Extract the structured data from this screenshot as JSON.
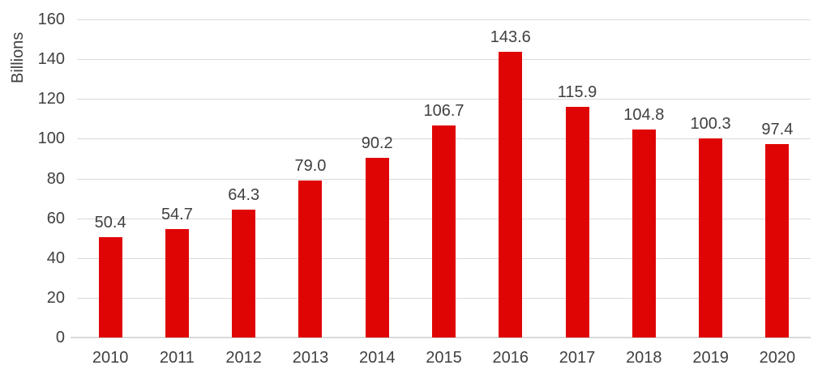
{
  "chart_data": {
    "type": "bar",
    "title": "",
    "xlabel": "",
    "ylabel": "Billions",
    "categories": [
      "2010",
      "2011",
      "2012",
      "2013",
      "2014",
      "2015",
      "2016",
      "2017",
      "2018",
      "2019",
      "2020"
    ],
    "values": [
      50.4,
      54.7,
      64.3,
      79.0,
      90.2,
      106.7,
      143.6,
      115.9,
      104.8,
      100.3,
      97.4
    ],
    "data_labels": [
      "50.4",
      "54.7",
      "64.3",
      "79.0",
      "90.2",
      "106.7",
      "143.6",
      "115.9",
      "104.8",
      "100.3",
      "97.4"
    ],
    "ylim": [
      0,
      160
    ],
    "yticks": [
      0,
      20,
      40,
      60,
      80,
      100,
      120,
      140,
      160
    ],
    "grid": "horizontal",
    "legend": "none",
    "colors": {
      "bar": "#e00505",
      "label_text": "#404040",
      "gridline": "#d9d9d9",
      "axis_line": "#d9d9d9",
      "background": "#ffffff"
    }
  }
}
